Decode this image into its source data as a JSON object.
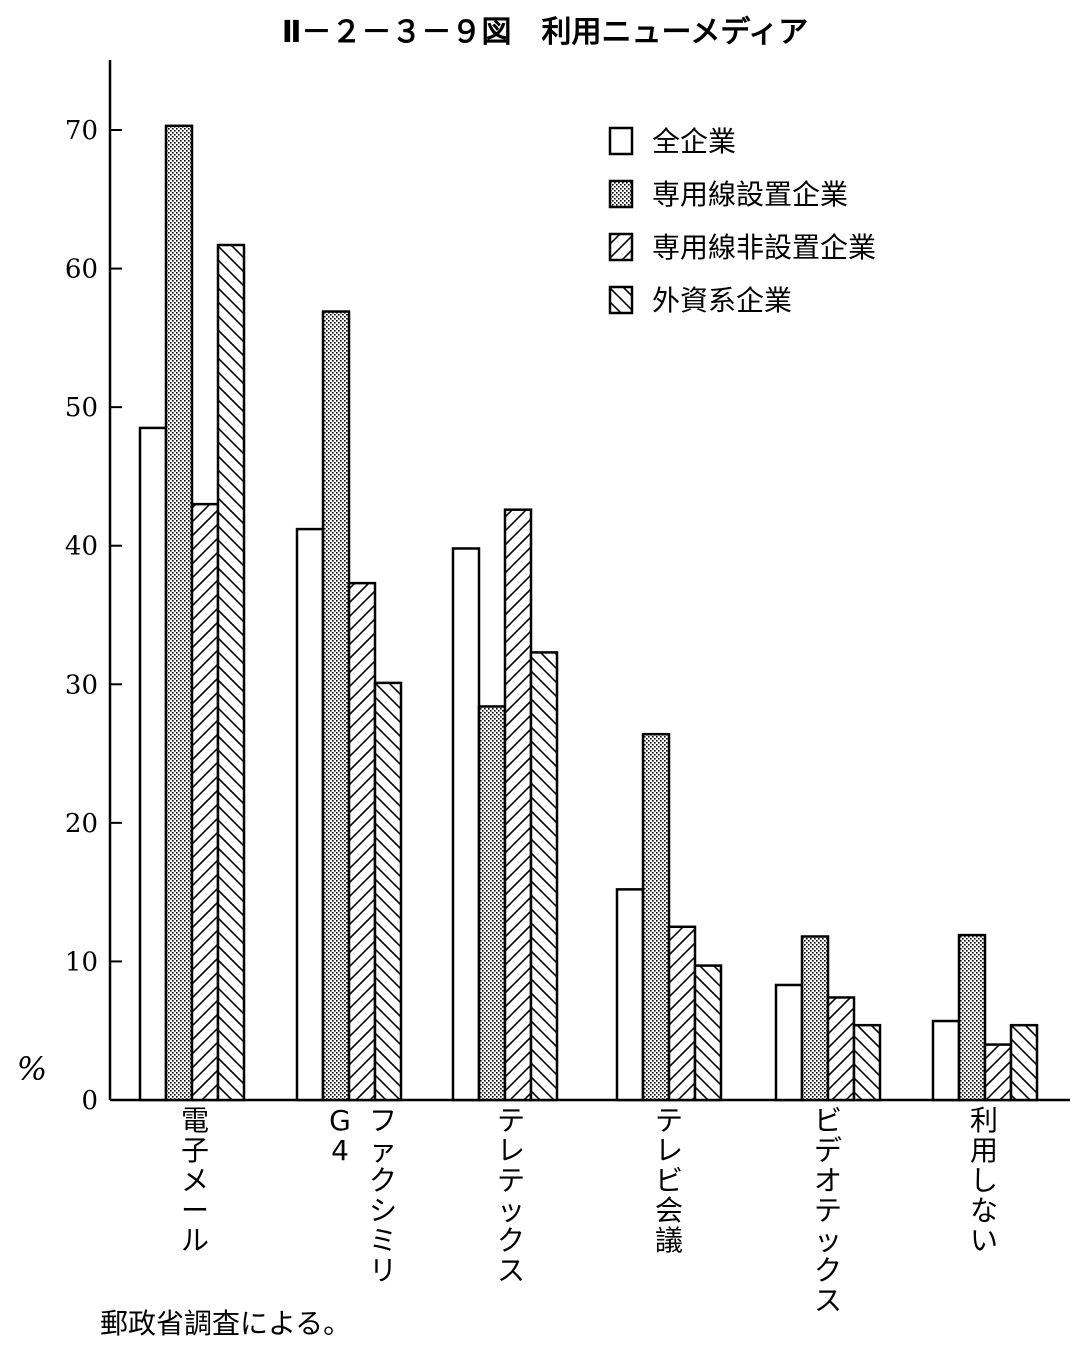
{
  "chart_data": {
    "type": "bar",
    "title": "Ⅱ－２－３－９図　利用ニューメディア",
    "ylabel": "%",
    "ylim": [
      0,
      70
    ],
    "yticks": [
      0,
      10,
      20,
      30,
      40,
      50,
      60,
      70
    ],
    "categories": [
      "電子メール",
      "G4 ファクシミリ",
      "テレテックス",
      "テレビ会議",
      "ビデオテックス",
      "利用しない"
    ],
    "category_lines": [
      [
        "電子メール"
      ],
      [
        "G4",
        "ファクシミリ"
      ],
      [
        "テレテックス"
      ],
      [
        "テレビ会議"
      ],
      [
        "ビデオテックス"
      ],
      [
        "利用しない"
      ]
    ],
    "series": [
      {
        "name": "全企業",
        "pattern": "plain",
        "values": [
          48.5,
          41.2,
          39.8,
          15.2,
          8.3,
          5.7
        ]
      },
      {
        "name": "専用線設置企業",
        "pattern": "dotted",
        "values": [
          70.3,
          56.9,
          28.4,
          26.4,
          11.8,
          11.9
        ]
      },
      {
        "name": "専用線非設置企業",
        "pattern": "diagonal-forward",
        "values": [
          43.0,
          37.3,
          42.6,
          12.5,
          7.4,
          4.0
        ]
      },
      {
        "name": "外資系企業",
        "pattern": "diagonal-backward",
        "values": [
          61.7,
          30.1,
          32.3,
          9.7,
          5.4,
          5.4
        ]
      }
    ],
    "legend_position": "top-right",
    "grid": false,
    "source": "郵政省調査による。"
  }
}
